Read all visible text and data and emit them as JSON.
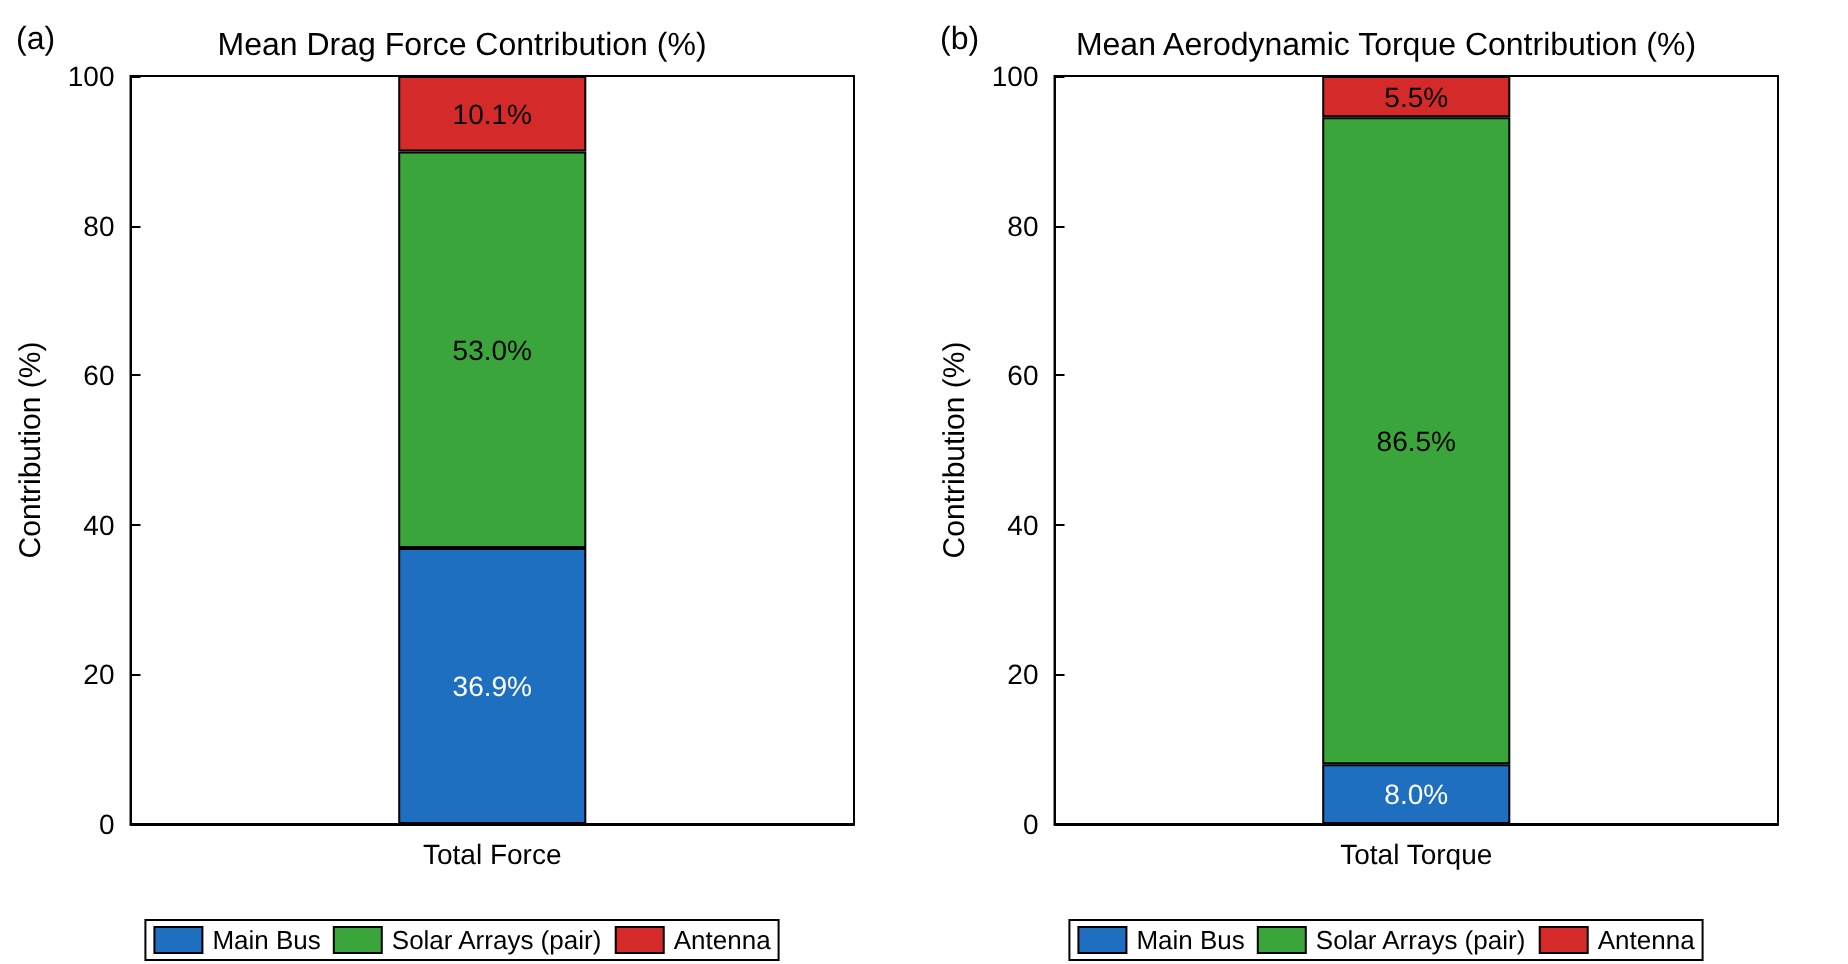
{
  "chart_data": [
    {
      "type": "bar",
      "title": "Mean Drag Force Contribution (%)",
      "ylabel": "Contribution (%)",
      "annotations": [
        "(a)"
      ],
      "categories": [
        "Total Force"
      ],
      "stacked": true,
      "ylim": [
        0,
        100
      ],
      "yticks": [
        0,
        20,
        40,
        60,
        80,
        100
      ],
      "grid": false,
      "legend": "bottom",
      "series": [
        {
          "name": "Main Bus",
          "color": "#1f6fc0",
          "values": [
            36.9
          ],
          "value_labels": [
            "36.9%"
          ]
        },
        {
          "name": "Solar Arrays (pair)",
          "color": "#3aa53a",
          "values": [
            53.0
          ],
          "value_labels": [
            "53.0%"
          ]
        },
        {
          "name": "Antenna",
          "color": "#d42a2a",
          "values": [
            10.1
          ],
          "value_labels": [
            "10.1%"
          ]
        }
      ]
    },
    {
      "type": "bar",
      "title": "Mean Aerodynamic Torque Contribution (%)",
      "ylabel": "Contribution (%)",
      "annotations": [
        "(b)"
      ],
      "categories": [
        "Total Torque"
      ],
      "stacked": true,
      "ylim": [
        0,
        100
      ],
      "yticks": [
        0,
        20,
        40,
        60,
        80,
        100
      ],
      "grid": false,
      "legend": "bottom",
      "series": [
        {
          "name": "Main Bus",
          "color": "#1f6fc0",
          "values": [
            8.0
          ],
          "value_labels": [
            "8.0%"
          ]
        },
        {
          "name": "Solar Arrays (pair)",
          "color": "#3aa53a",
          "values": [
            86.5
          ],
          "value_labels": [
            "86.5%"
          ]
        },
        {
          "name": "Antenna",
          "color": "#d42a2a",
          "values": [
            5.5
          ],
          "value_labels": [
            "5.5%"
          ]
        }
      ]
    }
  ]
}
